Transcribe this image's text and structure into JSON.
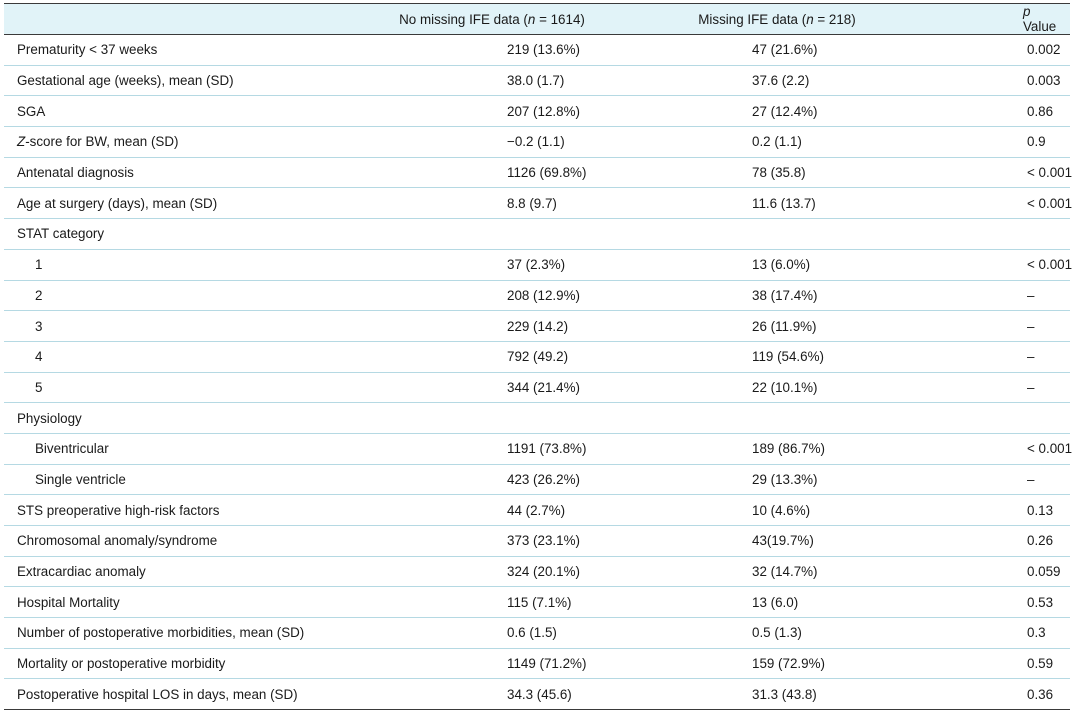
{
  "headers": {
    "col1_pre": "No missing IFE data (",
    "col1_n": "n",
    "col1_post": " = 1614)",
    "col2_pre": "Missing IFE data (",
    "col2_n": "n",
    "col2_post": " = 218)",
    "col3_p": "p",
    "col3_post": " Value"
  },
  "rows": [
    {
      "label": "Prematurity < 37 weeks",
      "no_missing": "219 (13.6%)",
      "missing": "47 (21.6%)",
      "p": "0.002"
    },
    {
      "label": "Gestational age (weeks), mean (SD)",
      "no_missing": "38.0 (1.7)",
      "missing": "37.6 (2.2)",
      "p": "0.003"
    },
    {
      "label": "SGA",
      "no_missing": "207 (12.8%)",
      "missing": "27 (12.4%)",
      "p": "0.86"
    },
    {
      "label_italic": "Z",
      "label": "-score for BW, mean (SD)",
      "no_missing": "−0.2 (1.1)",
      "missing": "0.2 (1.1)",
      "p": "0.9"
    },
    {
      "label": "Antenatal diagnosis",
      "no_missing": "1126 (69.8%)",
      "missing": "78 (35.8)",
      "p": "< 0.001"
    },
    {
      "label": "Age at surgery (days), mean (SD)",
      "no_missing": "8.8 (9.7)",
      "missing": "11.6 (13.7)",
      "p": "< 0.001"
    },
    {
      "label": "STAT category",
      "no_missing": "",
      "missing": "",
      "p": ""
    },
    {
      "label": "1",
      "sub": true,
      "no_missing": "37 (2.3%)",
      "missing": "13 (6.0%)",
      "p": "< 0.001"
    },
    {
      "label": "2",
      "sub": true,
      "no_missing": "208 (12.9%)",
      "missing": "38 (17.4%)",
      "p": "–"
    },
    {
      "label": "3",
      "sub": true,
      "no_missing": "229 (14.2)",
      "missing": "26 (11.9%)",
      "p": "–"
    },
    {
      "label": "4",
      "sub": true,
      "no_missing": "792 (49.2)",
      "missing": "119 (54.6%)",
      "p": "–"
    },
    {
      "label": "5",
      "sub": true,
      "no_missing": "344 (21.4%)",
      "missing": "22 (10.1%)",
      "p": "–"
    },
    {
      "label": "Physiology",
      "no_missing": "",
      "missing": "",
      "p": ""
    },
    {
      "label": "Biventricular",
      "sub": true,
      "no_missing": "1191 (73.8%)",
      "missing": "189 (86.7%)",
      "p": "< 0.001"
    },
    {
      "label": "Single ventricle",
      "sub": true,
      "no_missing": "423 (26.2%)",
      "missing": "29 (13.3%)",
      "p": "–"
    },
    {
      "label": "STS preoperative high-risk factors",
      "no_missing": "44 (2.7%)",
      "missing": "10 (4.6%)",
      "p": "0.13"
    },
    {
      "label": "Chromosomal anomaly/syndrome",
      "no_missing": "373 (23.1%)",
      "missing": "43(19.7%)",
      "p": "0.26"
    },
    {
      "label": "Extracardiac anomaly",
      "no_missing": "324 (20.1%)",
      "missing": "32 (14.7%)",
      "p": "0.059"
    },
    {
      "label": "Hospital Mortality",
      "no_missing": "115 (7.1%)",
      "missing": "13 (6.0)",
      "p": "0.53"
    },
    {
      "label": "Number of postoperative morbidities, mean (SD)",
      "no_missing": "0.6 (1.5)",
      "missing": "0.5 (1.3)",
      "p": "0.3"
    },
    {
      "label": "Mortality or postoperative morbidity",
      "no_missing": "1149 (71.2%)",
      "missing": "159 (72.9%)",
      "p": "0.59"
    },
    {
      "label": "Postoperative hospital LOS in days, mean (SD)",
      "no_missing": "34.3 (45.6)",
      "missing": "31.3 (43.8)",
      "p": "0.36"
    }
  ]
}
